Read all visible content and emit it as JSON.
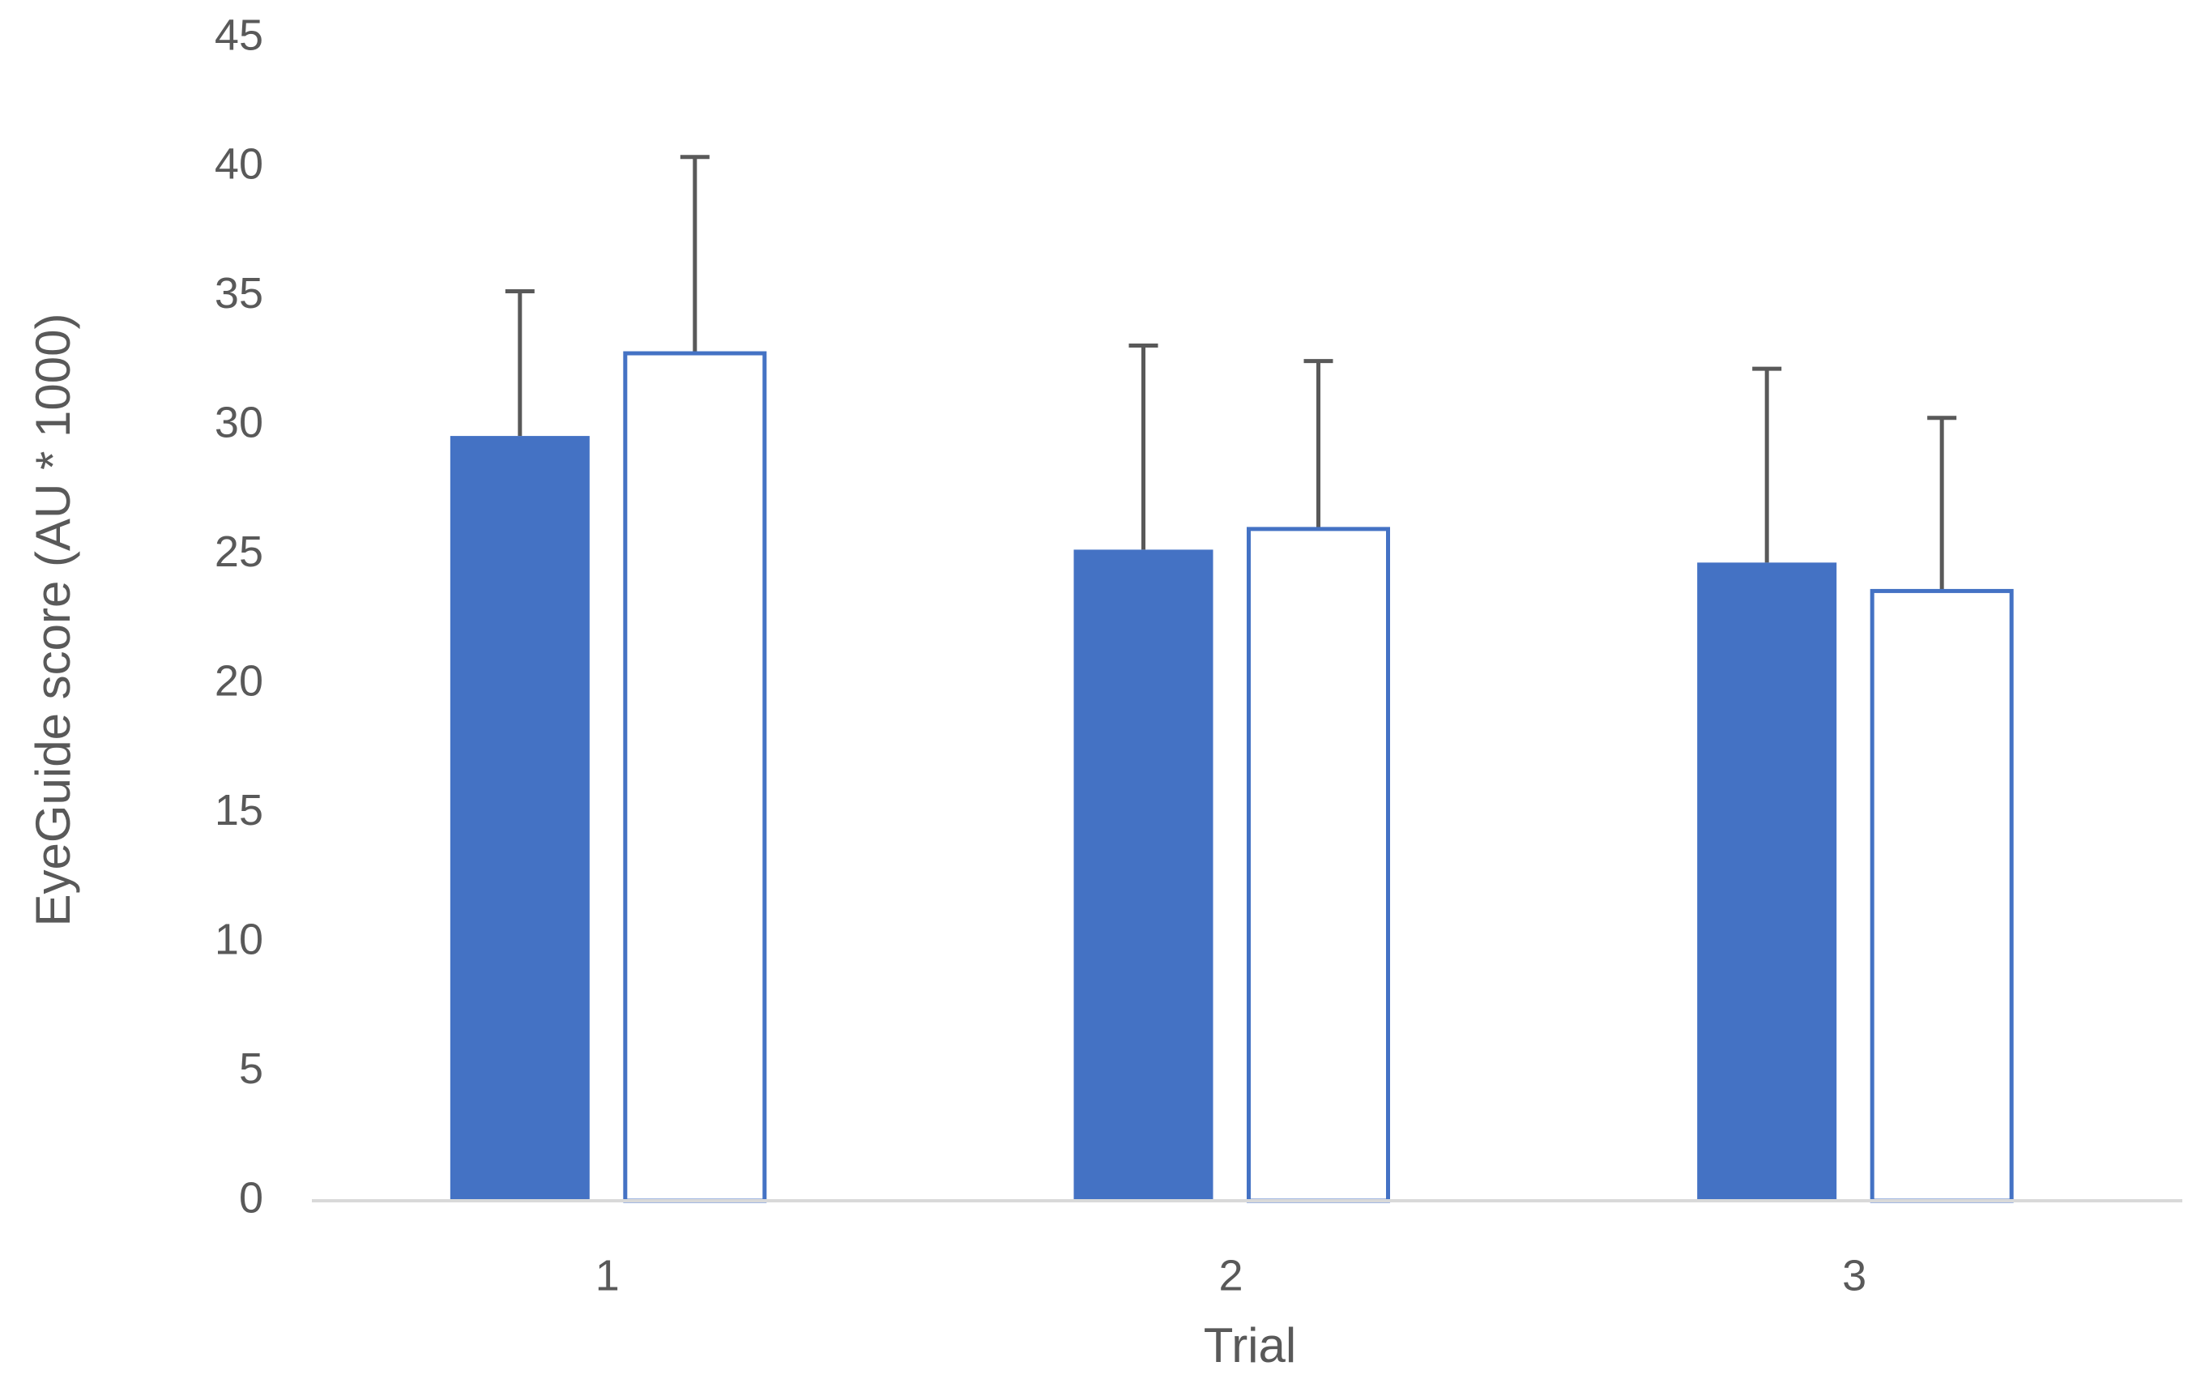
{
  "chart_data": {
    "type": "bar",
    "y_label": "EyeGuide score (AU * 1000)",
    "x_label": "Trial",
    "categories": [
      "1",
      "2",
      "3"
    ],
    "series": [
      {
        "color": "#4472c4",
        "fill": "#4472c4",
        "values": [
          29.6,
          25.2,
          24.7
        ],
        "errors": [
          5.6,
          7.9,
          7.5
        ]
      },
      {
        "color": "#4472c4",
        "fill": "#ffffff",
        "values": [
          32.8,
          26.0,
          23.6
        ],
        "errors": [
          7.6,
          6.5,
          6.7
        ]
      }
    ],
    "error_color": "#595959",
    "ylim": [
      0,
      45
    ],
    "yticks": [
      0,
      5,
      10,
      15,
      20,
      25,
      30,
      35,
      40,
      45
    ],
    "grid": false
  }
}
